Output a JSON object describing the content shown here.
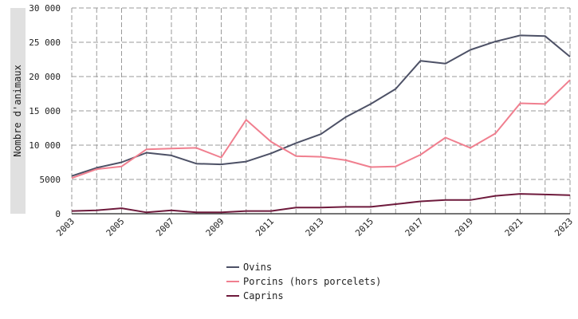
{
  "chart_data": {
    "type": "line",
    "ylabel": "Nombre d'animaux",
    "xlabel": "",
    "x": [
      2003,
      2004,
      2005,
      2006,
      2007,
      2008,
      2009,
      2010,
      2011,
      2012,
      2013,
      2014,
      2015,
      2016,
      2017,
      2018,
      2019,
      2020,
      2021,
      2022,
      2023
    ],
    "x_tick_labels": [
      "2003",
      "2005",
      "2007",
      "2009",
      "2011",
      "2013",
      "2015",
      "2017",
      "2019",
      "2021",
      "2023"
    ],
    "y_tick_labels": [
      "0",
      "5000",
      "10 000",
      "15 000",
      "20 000",
      "25 000",
      "30 000"
    ],
    "xlim": [
      2003,
      2023
    ],
    "ylim": [
      0,
      30000
    ],
    "grid": true,
    "legend_position": "bottom-center",
    "series": [
      {
        "name": "Ovins",
        "color": "#4d5166",
        "values": [
          5500,
          6700,
          7500,
          8900,
          8500,
          7300,
          7200,
          7600,
          8800,
          10300,
          11600,
          14100,
          16000,
          18200,
          22300,
          21900,
          23900,
          25100,
          26000,
          25900,
          22900
        ]
      },
      {
        "name": "Porcins (hors porcelets)",
        "color": "#f07f8f",
        "values": [
          5200,
          6500,
          6900,
          9400,
          9500,
          9600,
          8200,
          13700,
          10500,
          8400,
          8300,
          7800,
          6800,
          6900,
          8600,
          11100,
          9600,
          11700,
          16100,
          16000,
          19500
        ]
      },
      {
        "name": "Caprins",
        "color": "#6e1a3c",
        "values": [
          400,
          500,
          800,
          200,
          500,
          200,
          200,
          400,
          400,
          900,
          900,
          1000,
          1000,
          1400,
          1800,
          2000,
          2000,
          2600,
          2900,
          2800,
          2700
        ]
      }
    ]
  }
}
